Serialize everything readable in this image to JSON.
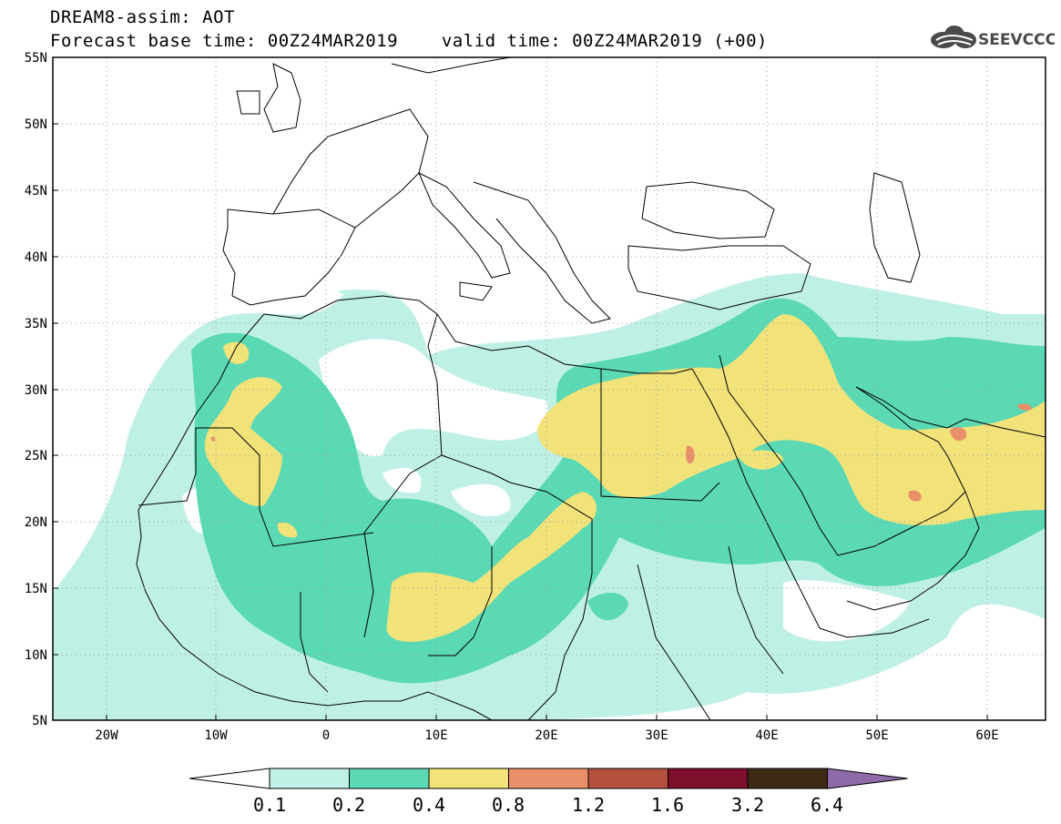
{
  "header": {
    "title": "DREAM8-assim: AOT",
    "base_time_label": "Forecast base time: 00Z24MAR2019",
    "valid_time_label": "valid time: 00Z24MAR2019 (+00)",
    "logo_text": "SEEVCCC"
  },
  "map": {
    "lon_range": [
      -25,
      65
    ],
    "lat_range": [
      5,
      55
    ],
    "lon_tick_labels": [
      "20W",
      "10W",
      "0",
      "10E",
      "20E",
      "30E",
      "40E",
      "50E",
      "60E"
    ],
    "lat_tick_labels": [
      "55N",
      "50N",
      "45N",
      "40N",
      "35N",
      "30N",
      "25N",
      "20N",
      "15N",
      "10N",
      "5N"
    ],
    "grid": true,
    "field": "AOT"
  },
  "legend": {
    "levels": [
      "0.1",
      "0.2",
      "0.4",
      "0.8",
      "1.2",
      "1.6",
      "3.2",
      "6.4"
    ],
    "colors": [
      "#ffffff",
      "#bff0e6",
      "#5ad9b4",
      "#f2e27a",
      "#e9906a",
      "#b5503f",
      "#7d0e2c",
      "#3d2a15",
      "#8f6aa8"
    ]
  }
}
